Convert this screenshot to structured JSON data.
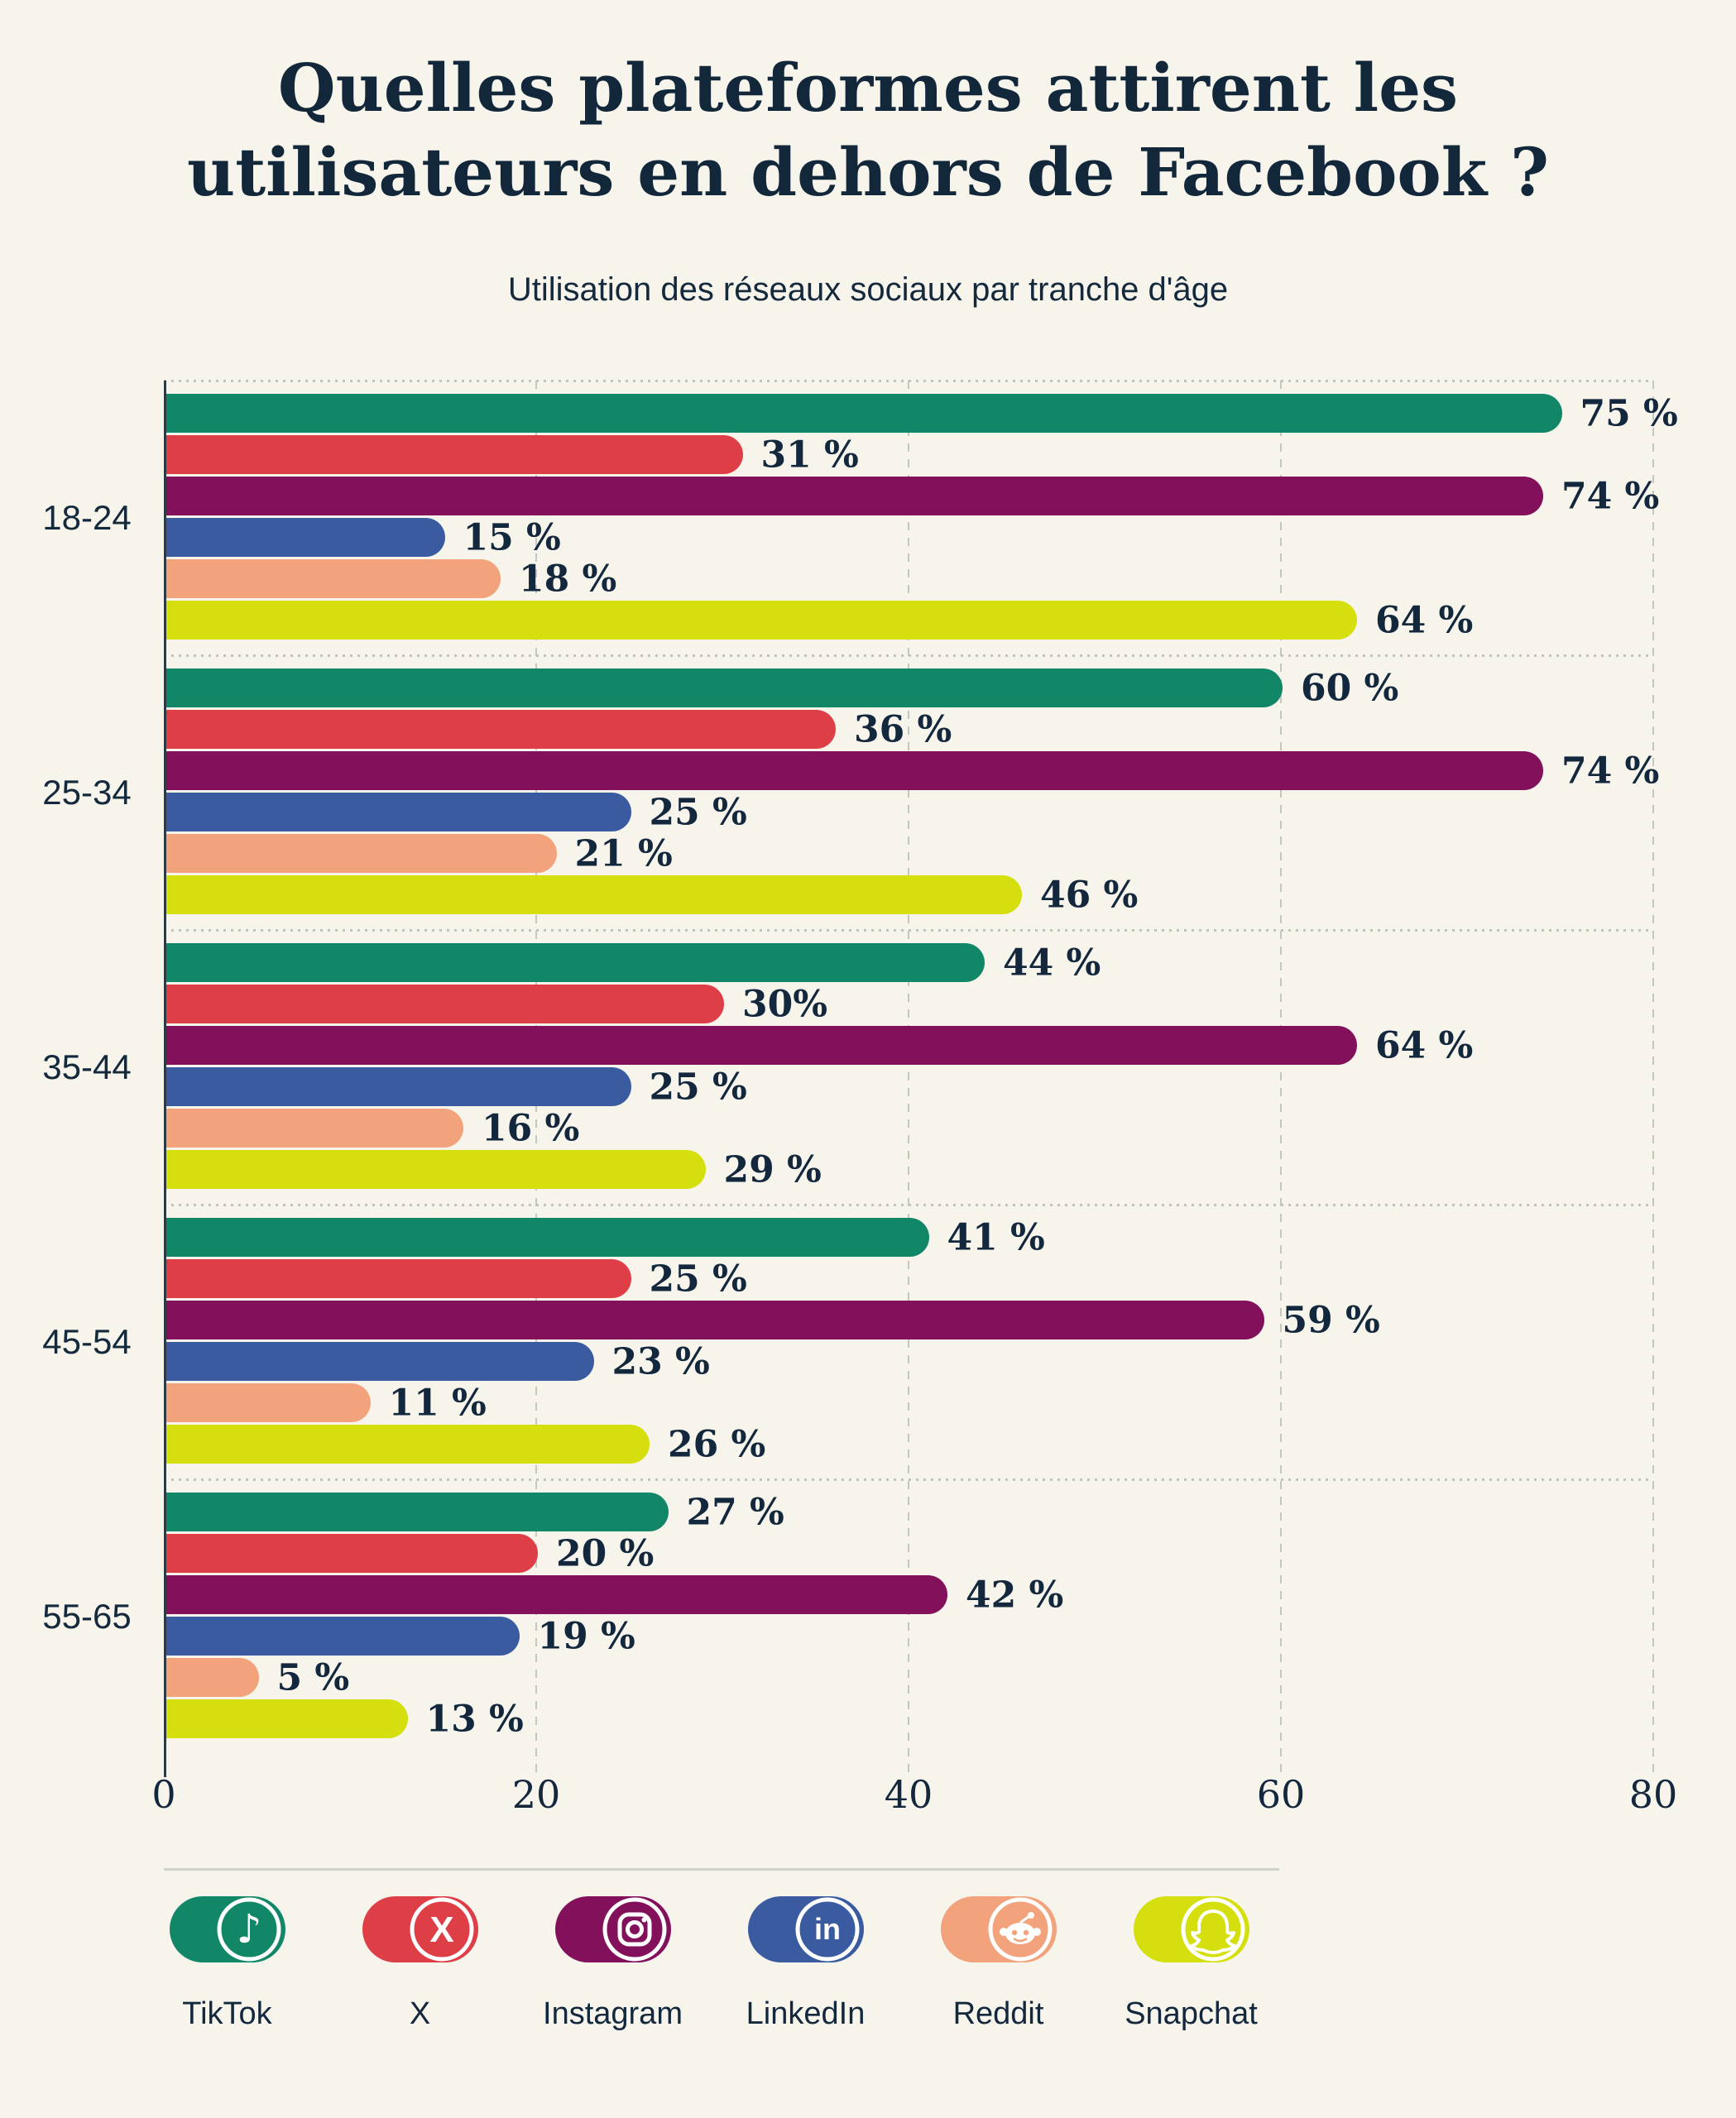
{
  "title_lines": [
    "Quelles plateformes attirent les",
    "utilisateurs en dehors de Facebook ?"
  ],
  "subtitle": "Utilisation des réseaux sociaux par tranche d'âge",
  "colors": {
    "background": "#F7F4EC",
    "text": "#142A3C",
    "title": "#12283A",
    "axis": "#2E3A43",
    "gridline": "#C6C6C0",
    "tiktok": "#128768",
    "x": "#DE3F47",
    "instagram": "#82105A",
    "linkedin": "#3A5B9F",
    "reddit": "#F2A37B",
    "snapchat": "#D4DF0D"
  },
  "chart_data": {
    "type": "bar",
    "orientation": "horizontal",
    "title": "Quelles plateformes attirent les utilisateurs en dehors de Facebook ?",
    "subtitle": "Utilisation des réseaux sociaux par tranche d'âge",
    "categories": [
      "18-24",
      "25-34",
      "35-44",
      "45-54",
      "55-65"
    ],
    "series": [
      {
        "name": "TikTok",
        "color": "#128768",
        "values": [
          75,
          60,
          44,
          41,
          27
        ],
        "labels": [
          "75 %",
          "60 %",
          "44 %",
          "41 %",
          "27 %"
        ]
      },
      {
        "name": "X",
        "color": "#DE3F47",
        "values": [
          31,
          36,
          30,
          25,
          20
        ],
        "labels": [
          "31 %",
          "36 %",
          "30%",
          "25 %",
          "20 %"
        ]
      },
      {
        "name": "Instagram",
        "color": "#82105A",
        "values": [
          74,
          74,
          64,
          59,
          42
        ],
        "labels": [
          "74 %",
          "74 %",
          "64 %",
          "59 %",
          "42 %"
        ]
      },
      {
        "name": "LinkedIn",
        "color": "#3A5B9F",
        "values": [
          15,
          25,
          25,
          23,
          19
        ],
        "labels": [
          "15 %",
          "25 %",
          "25 %",
          "23 %",
          "19 %"
        ]
      },
      {
        "name": "Reddit",
        "color": "#F2A37B",
        "values": [
          18,
          21,
          16,
          11,
          5
        ],
        "labels": [
          "18 %",
          "21 %",
          "16 %",
          "11 %",
          "5 %"
        ]
      },
      {
        "name": "Snapchat",
        "color": "#D4DF0D",
        "values": [
          64,
          46,
          29,
          26,
          13
        ],
        "labels": [
          "64 %",
          "46 %",
          "29 %",
          "26 %",
          "13 %"
        ]
      }
    ],
    "xlim": [
      0,
      80
    ],
    "xticks": [
      "0",
      "20",
      "40",
      "60",
      "80"
    ],
    "grid": "dashed-vertical",
    "legend_position": "bottom"
  },
  "legend": {
    "items": [
      {
        "label": "TikTok",
        "icon": "tiktok-icon"
      },
      {
        "label": "X",
        "icon": "x-icon"
      },
      {
        "label": "Instagram",
        "icon": "instagram-icon"
      },
      {
        "label": "LinkedIn",
        "icon": "linkedin-icon"
      },
      {
        "label": "Reddit",
        "icon": "reddit-icon"
      },
      {
        "label": "Snapchat",
        "icon": "snapchat-icon"
      }
    ]
  }
}
